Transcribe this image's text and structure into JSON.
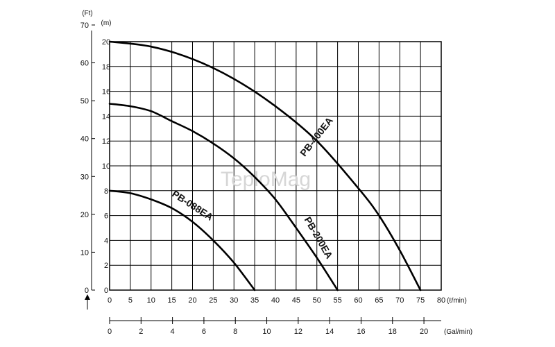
{
  "chart_data": {
    "type": "line",
    "title": "",
    "watermark": "TeploMag",
    "x_primary": {
      "unit": "(ℓ/min)",
      "ticks": [
        0,
        5,
        10,
        15,
        20,
        25,
        30,
        35,
        40,
        45,
        50,
        55,
        60,
        65,
        70,
        75,
        80
      ],
      "range": [
        0,
        80
      ]
    },
    "x_secondary": {
      "unit": "(Gal/min)",
      "ticks": [
        0,
        2,
        4,
        6,
        8,
        10,
        12,
        14,
        16,
        18,
        20
      ],
      "range": [
        0,
        21.1
      ]
    },
    "y_meters": {
      "unit": "(m)",
      "ticks": [
        0,
        2,
        4,
        6,
        8,
        10,
        12,
        14,
        16,
        18,
        20
      ],
      "range": [
        0,
        20
      ]
    },
    "y_feet": {
      "unit": "(Ft)",
      "ticks": [
        0,
        10,
        20,
        30,
        40,
        50,
        60,
        70
      ],
      "range": [
        0,
        65.6
      ]
    },
    "grid": true,
    "series": [
      {
        "name": "PB-088EA",
        "x": [
          0,
          5,
          10,
          15,
          20,
          25,
          30,
          35
        ],
        "y": [
          8.0,
          7.8,
          7.3,
          6.6,
          5.5,
          4.0,
          2.2,
          0.0
        ]
      },
      {
        "name": "PB-200EA",
        "x": [
          0,
          5,
          10,
          15,
          20,
          25,
          30,
          35,
          40,
          45,
          50,
          55
        ],
        "y": [
          15.0,
          14.8,
          14.4,
          13.6,
          12.8,
          11.8,
          10.6,
          9.1,
          7.3,
          5.0,
          2.6,
          0.0
        ]
      },
      {
        "name": "PB-400EA",
        "x": [
          0,
          10,
          20,
          30,
          40,
          50,
          60,
          65,
          70,
          75
        ],
        "y": [
          20.0,
          19.6,
          18.6,
          17.0,
          14.8,
          12.0,
          8.2,
          6.0,
          3.2,
          0.0
        ]
      }
    ]
  }
}
